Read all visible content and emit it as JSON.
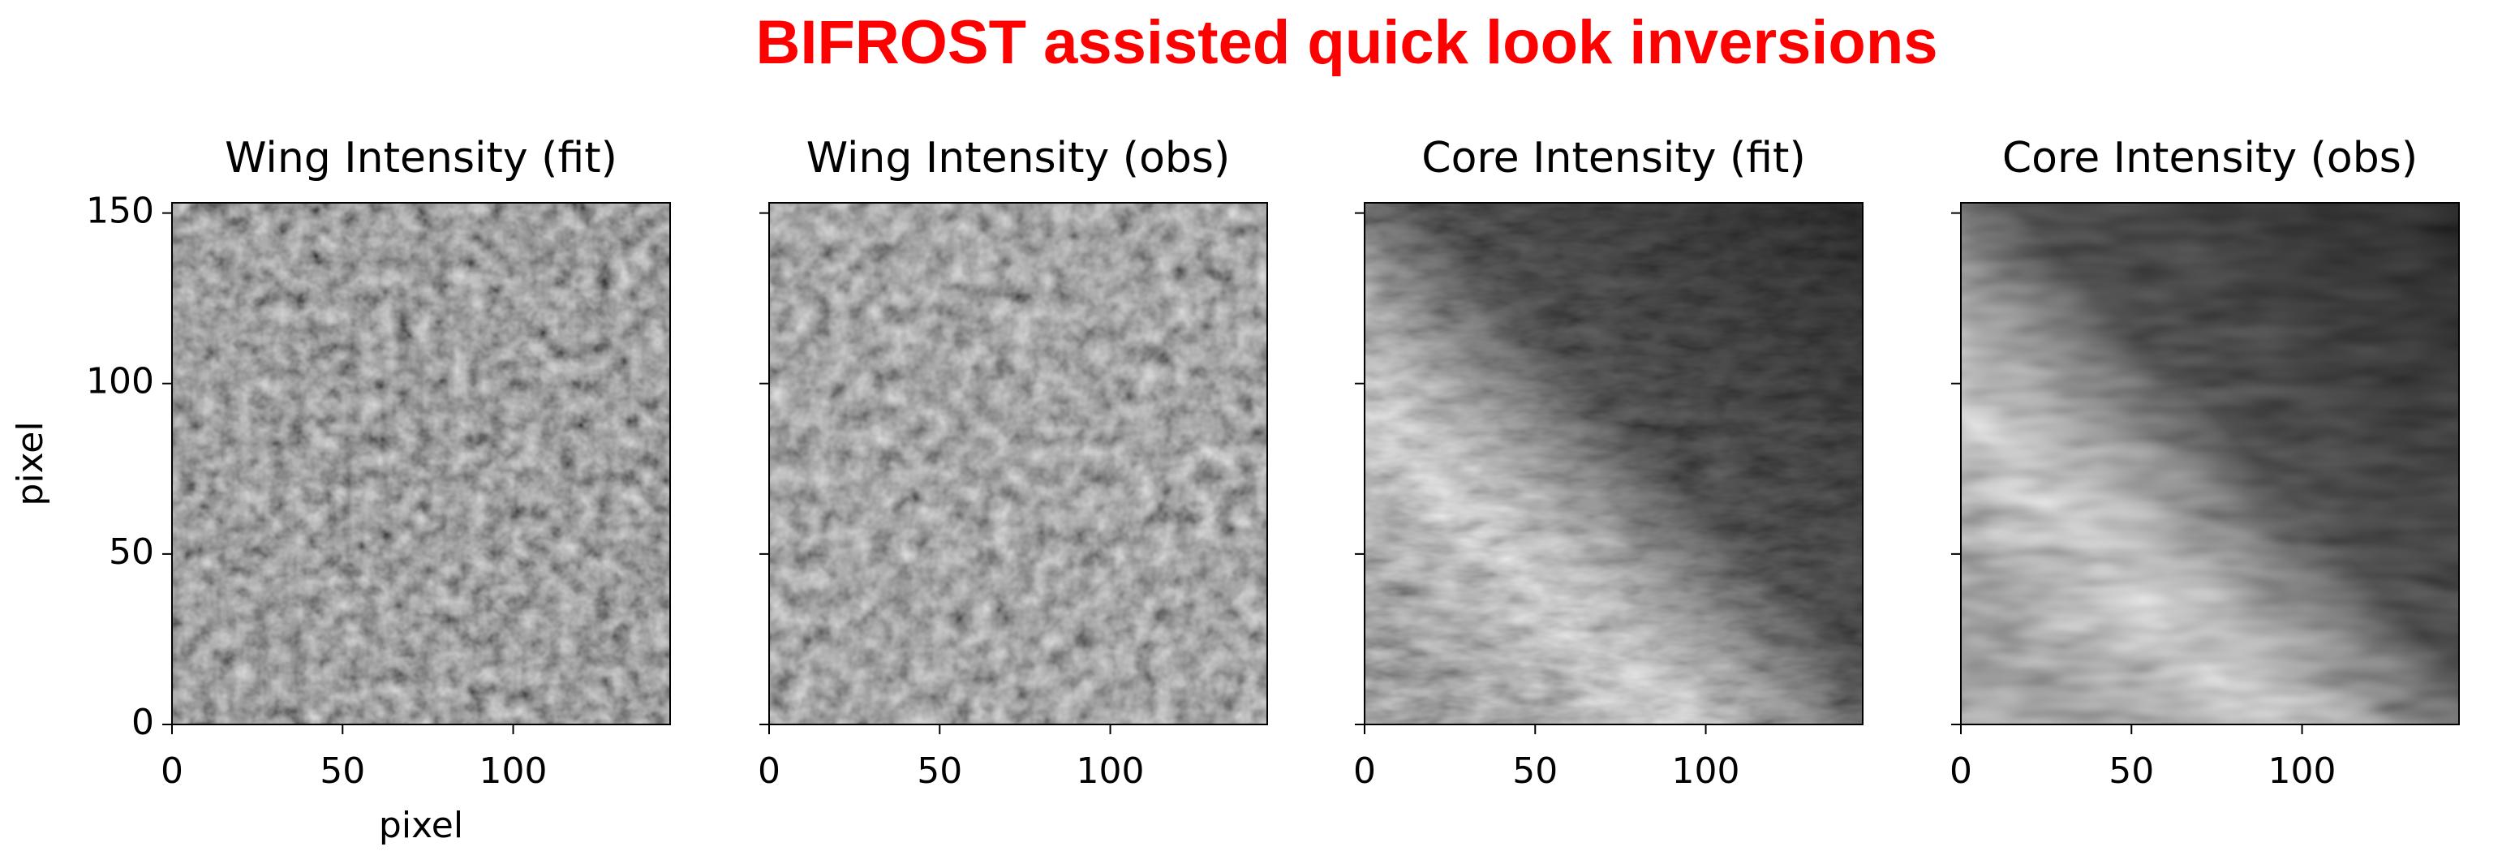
{
  "title": "BIFROST assisted quick look inversions",
  "chart_data": [
    {
      "type": "image",
      "title": "Wing Intensity (fit)",
      "xlim": [
        0,
        146
      ],
      "xticks": [
        0,
        50,
        100
      ],
      "ylim": [
        0,
        153
      ],
      "yticks": [
        0,
        50,
        100,
        150
      ],
      "ytick_labels": true,
      "xlabel": "pixel",
      "ylabel": "pixel"
    },
    {
      "type": "image",
      "title": "Wing Intensity (obs)",
      "xlim": [
        0,
        146
      ],
      "xticks": [
        0,
        50,
        100
      ],
      "ylim": [
        0,
        153
      ],
      "yticks": [
        0,
        50,
        100,
        150
      ],
      "ytick_labels": false
    },
    {
      "type": "image",
      "title": "Core Intensity (fit)",
      "xlim": [
        0,
        146
      ],
      "xticks": [
        0,
        50,
        100
      ],
      "ylim": [
        0,
        153
      ],
      "yticks": [
        0,
        50,
        100,
        150
      ],
      "ytick_labels": false
    },
    {
      "type": "image",
      "title": "Core Intensity (obs)",
      "xlim": [
        0,
        146
      ],
      "xticks": [
        0,
        50,
        100
      ],
      "ylim": [
        0,
        153
      ],
      "yticks": [
        0,
        50,
        100,
        150
      ],
      "ytick_labels": false
    }
  ]
}
